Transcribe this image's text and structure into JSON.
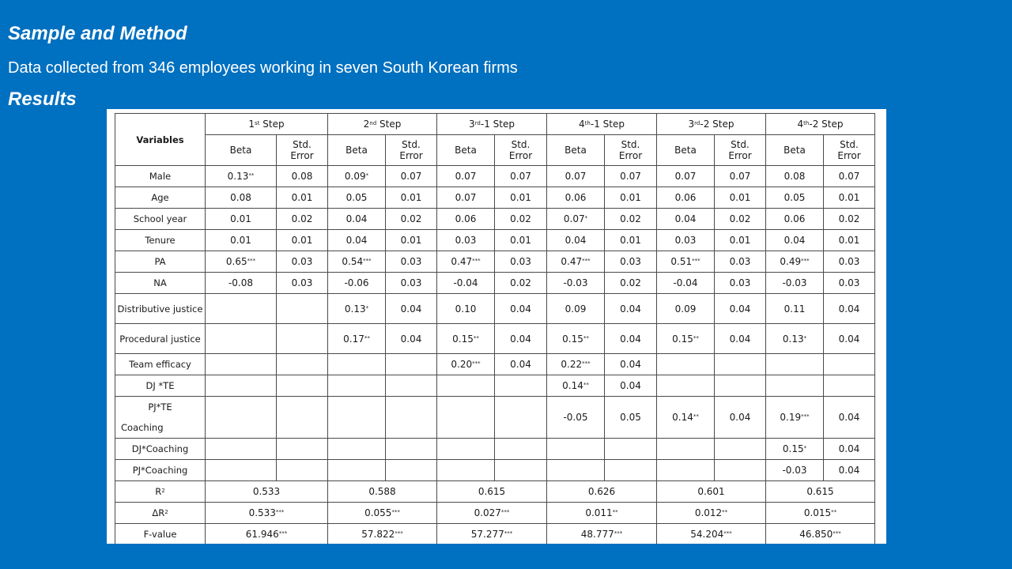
{
  "slide": {
    "heading_method": "Sample and Method",
    "method_text": "Data collected from 346 employees working in seven South Korean firms",
    "heading_results": "Results"
  },
  "table": {
    "variables_label": "Variables",
    "steps": [
      {
        "pre": "1",
        "sup": "st",
        "post": " Step"
      },
      {
        "pre": "2",
        "sup": "nd",
        "post": " Step"
      },
      {
        "pre": "3",
        "sup": "rd",
        "post": "-1 Step"
      },
      {
        "pre": "4",
        "sup": "th",
        "post": "-1 Step"
      },
      {
        "pre": "3",
        "sup": "rd",
        "post": "-2 Step"
      },
      {
        "pre": "4",
        "sup": "th",
        "post": "-2 Step"
      }
    ],
    "beta_label": "Beta",
    "se_label_1": "Std.",
    "se_label_2": "Error",
    "rows": [
      {
        "label": "Male",
        "cells": [
          [
            "0.13",
            "**"
          ],
          [
            "0.08",
            ""
          ],
          [
            "0.09",
            "*"
          ],
          [
            "0.07",
            ""
          ],
          [
            "0.07",
            ""
          ],
          [
            "0.07",
            ""
          ],
          [
            "0.07",
            ""
          ],
          [
            "0.07",
            ""
          ],
          [
            "0.07",
            ""
          ],
          [
            "0.07",
            ""
          ],
          [
            "0.08",
            ""
          ],
          [
            "0.07",
            ""
          ]
        ]
      },
      {
        "label": "Age",
        "cells": [
          [
            "0.08",
            ""
          ],
          [
            "0.01",
            ""
          ],
          [
            "0.05",
            ""
          ],
          [
            "0.01",
            ""
          ],
          [
            "0.07",
            ""
          ],
          [
            "0.01",
            ""
          ],
          [
            "0.06",
            ""
          ],
          [
            "0.01",
            ""
          ],
          [
            "0.06",
            ""
          ],
          [
            "0.01",
            ""
          ],
          [
            "0.05",
            ""
          ],
          [
            "0.01",
            ""
          ]
        ]
      },
      {
        "label": "School year",
        "cells": [
          [
            "0.01",
            ""
          ],
          [
            "0.02",
            ""
          ],
          [
            "0.04",
            ""
          ],
          [
            "0.02",
            ""
          ],
          [
            "0.06",
            ""
          ],
          [
            "0.02",
            ""
          ],
          [
            "0.07",
            "*"
          ],
          [
            "0.02",
            ""
          ],
          [
            "0.04",
            ""
          ],
          [
            "0.02",
            ""
          ],
          [
            "0.06",
            ""
          ],
          [
            "0.02",
            ""
          ]
        ]
      },
      {
        "label": "Tenure",
        "cells": [
          [
            "0.01",
            ""
          ],
          [
            "0.01",
            ""
          ],
          [
            "0.04",
            ""
          ],
          [
            "0.01",
            ""
          ],
          [
            "0.03",
            ""
          ],
          [
            "0.01",
            ""
          ],
          [
            "0.04",
            ""
          ],
          [
            "0.01",
            ""
          ],
          [
            "0.03",
            ""
          ],
          [
            "0.01",
            ""
          ],
          [
            "0.04",
            ""
          ],
          [
            "0.01",
            ""
          ]
        ]
      },
      {
        "label": "PA",
        "cells": [
          [
            "0.65",
            "***"
          ],
          [
            "0.03",
            ""
          ],
          [
            "0.54",
            "***"
          ],
          [
            "0.03",
            ""
          ],
          [
            "0.47",
            "***"
          ],
          [
            "0.03",
            ""
          ],
          [
            "0.47",
            "***"
          ],
          [
            "0.03",
            ""
          ],
          [
            "0.51",
            "***"
          ],
          [
            "0.03",
            ""
          ],
          [
            "0.49",
            "***"
          ],
          [
            "0.03",
            ""
          ]
        ]
      },
      {
        "label": "NA",
        "cells": [
          [
            "-0.08",
            ""
          ],
          [
            "0.03",
            ""
          ],
          [
            "-0.06",
            ""
          ],
          [
            "0.03",
            ""
          ],
          [
            "-0.04",
            ""
          ],
          [
            "0.02",
            ""
          ],
          [
            "-0.03",
            ""
          ],
          [
            "0.02",
            ""
          ],
          [
            "-0.04",
            ""
          ],
          [
            "0.03",
            ""
          ],
          [
            "-0.03",
            ""
          ],
          [
            "0.03",
            ""
          ]
        ]
      },
      {
        "label": "Distributive justice",
        "cells": [
          [
            "",
            ""
          ],
          [
            "",
            ""
          ],
          [
            "0.13",
            "*"
          ],
          [
            "0.04",
            ""
          ],
          [
            "0.10",
            ""
          ],
          [
            "0.04",
            ""
          ],
          [
            "0.09",
            ""
          ],
          [
            "0.04",
            ""
          ],
          [
            "0.09",
            ""
          ],
          [
            "0.04",
            ""
          ],
          [
            "0.11",
            ""
          ],
          [
            "0.04",
            ""
          ]
        ]
      },
      {
        "label": "Procedural justice",
        "cells": [
          [
            "",
            ""
          ],
          [
            "",
            ""
          ],
          [
            "0.17",
            "**"
          ],
          [
            "0.04",
            ""
          ],
          [
            "0.15",
            "**"
          ],
          [
            "0.04",
            ""
          ],
          [
            "0.15",
            "**"
          ],
          [
            "0.04",
            ""
          ],
          [
            "0.15",
            "**"
          ],
          [
            "0.04",
            ""
          ],
          [
            "0.13",
            "*"
          ],
          [
            "0.04",
            ""
          ]
        ]
      },
      {
        "label": "Team efficacy",
        "cells": [
          [
            "",
            ""
          ],
          [
            "",
            ""
          ],
          [
            "",
            ""
          ],
          [
            "",
            ""
          ],
          [
            "0.20",
            "***"
          ],
          [
            "0.04",
            ""
          ],
          [
            "0.22",
            "***"
          ],
          [
            "0.04",
            ""
          ],
          [
            "",
            ""
          ],
          [
            "",
            ""
          ],
          [
            "",
            ""
          ],
          [
            "",
            ""
          ]
        ]
      },
      {
        "label": "DJ *TE",
        "cells": [
          [
            "",
            ""
          ],
          [
            "",
            ""
          ],
          [
            "",
            ""
          ],
          [
            "",
            ""
          ],
          [
            "",
            ""
          ],
          [
            "",
            ""
          ],
          [
            "0.14",
            "**"
          ],
          [
            "0.04",
            ""
          ],
          [
            "",
            ""
          ],
          [
            "",
            ""
          ],
          [
            "",
            ""
          ],
          [
            "",
            ""
          ]
        ]
      },
      {
        "label": "PJ*TE",
        "label2": "Coaching",
        "cells": [
          [
            "",
            ""
          ],
          [
            "",
            ""
          ],
          [
            "",
            ""
          ],
          [
            "",
            ""
          ],
          [
            "",
            ""
          ],
          [
            "",
            ""
          ],
          [
            "-0.05",
            ""
          ],
          [
            "0.05",
            ""
          ],
          [
            "0.14",
            "**"
          ],
          [
            "0.04",
            ""
          ],
          [
            "0.19",
            "***"
          ],
          [
            "0.04",
            ""
          ]
        ]
      },
      {
        "label": "DJ*Coaching",
        "cells": [
          [
            "",
            ""
          ],
          [
            "",
            ""
          ],
          [
            "",
            ""
          ],
          [
            "",
            ""
          ],
          [
            "",
            ""
          ],
          [
            "",
            ""
          ],
          [
            "",
            ""
          ],
          [
            "",
            ""
          ],
          [
            "",
            ""
          ],
          [
            "",
            ""
          ],
          [
            "0.15",
            "*"
          ],
          [
            "0.04",
            ""
          ]
        ]
      },
      {
        "label": "PJ*Coaching",
        "cells": [
          [
            "",
            ""
          ],
          [
            "",
            ""
          ],
          [
            "",
            ""
          ],
          [
            "",
            ""
          ],
          [
            "",
            ""
          ],
          [
            "",
            ""
          ],
          [
            "",
            ""
          ],
          [
            "",
            ""
          ],
          [
            "",
            ""
          ],
          [
            "",
            ""
          ],
          [
            "-0.03",
            ""
          ],
          [
            "0.04",
            ""
          ]
        ]
      }
    ],
    "summary": [
      {
        "label_pre": "R",
        "label_sup": "2",
        "values": [
          [
            "0.533",
            ""
          ],
          [
            "0.588",
            ""
          ],
          [
            "0.615",
            ""
          ],
          [
            "0.626",
            ""
          ],
          [
            "0.601",
            ""
          ],
          [
            "0.615",
            ""
          ]
        ]
      },
      {
        "label_pre": "ΔR",
        "label_sup": "2",
        "values": [
          [
            "0.533",
            "***"
          ],
          [
            "0.055",
            "***"
          ],
          [
            "0.027",
            "***"
          ],
          [
            "0.011",
            "**"
          ],
          [
            "0.012",
            "**"
          ],
          [
            "0.015",
            "**"
          ]
        ]
      },
      {
        "label_pre": "F-value",
        "label_sup": "",
        "values": [
          [
            "61.946",
            "***"
          ],
          [
            "57.822",
            "***"
          ],
          [
            "57.277",
            "***"
          ],
          [
            "48.777",
            "***"
          ],
          [
            "54.204",
            "***"
          ],
          [
            "46.850",
            "***"
          ]
        ]
      }
    ]
  }
}
